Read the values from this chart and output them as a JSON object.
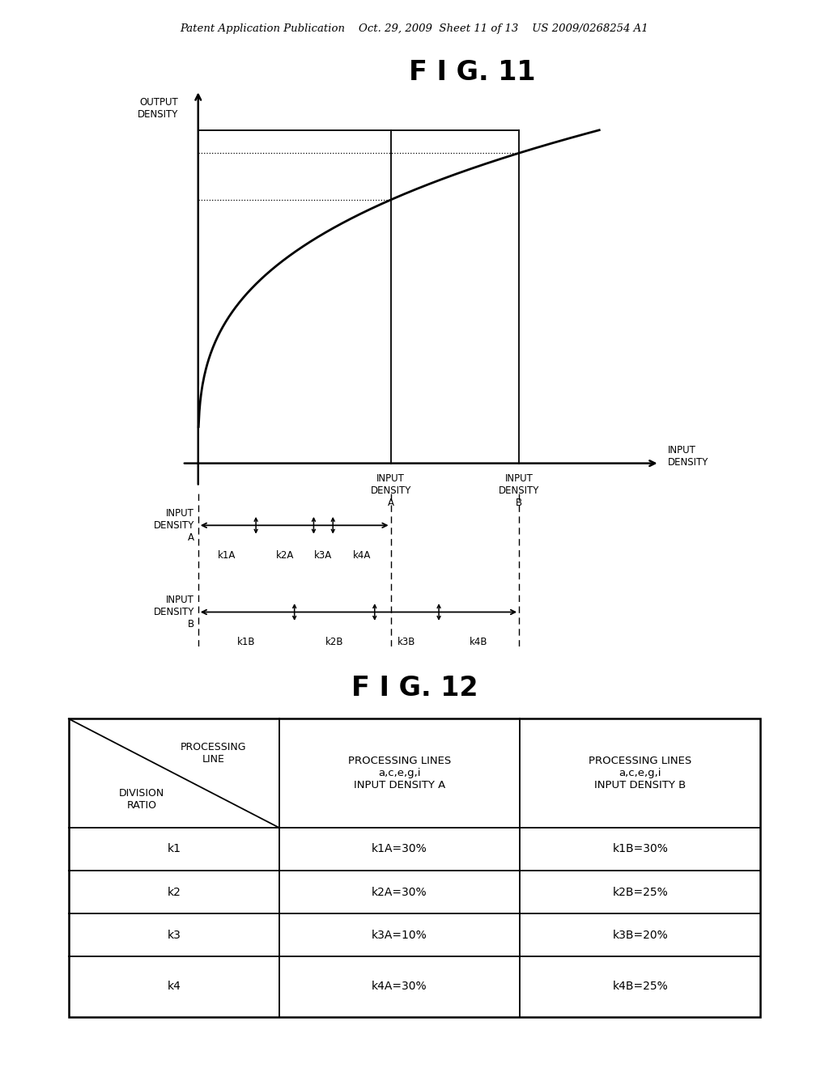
{
  "fig11_title": "F I G. 11",
  "fig12_title": "F I G. 12",
  "header_text": "Patent Application Publication    Oct. 29, 2009  Sheet 11 of 13    US 2009/0268254 A1",
  "curve_color": "#000000",
  "background_color": "#ffffff",
  "xA": 0.48,
  "xB": 0.8,
  "curve_power": 0.32,
  "table_rows": [
    [
      "k1",
      "k1A=30%",
      "k1B=30%"
    ],
    [
      "k2",
      "k2A=30%",
      "k2B=25%"
    ],
    [
      "k3",
      "k3A=10%",
      "k3B=20%"
    ],
    [
      "k4",
      "k4A=30%",
      "k4B=25%"
    ]
  ],
  "k_ratios_A": [
    0.3,
    0.3,
    0.1,
    0.3
  ],
  "k_ratios_B": [
    0.3,
    0.25,
    0.2,
    0.25
  ]
}
